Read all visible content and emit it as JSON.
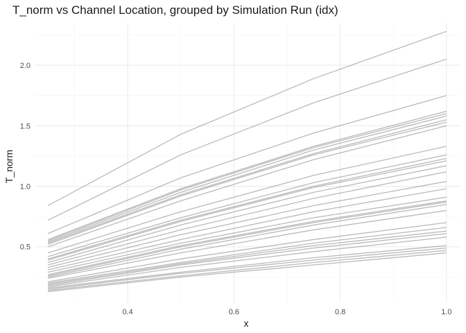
{
  "chart_data": {
    "type": "line",
    "title": "T_norm vs Channel Location, grouped by Simulation Run (idx)",
    "xlabel": "x",
    "ylabel": "T_norm",
    "xlim": [
      0.225,
      1.025
    ],
    "ylim": [
      0.04,
      2.35
    ],
    "x_ticks": [
      0.4,
      0.6,
      0.8,
      1.0
    ],
    "x_tick_labels": [
      "0.4",
      "0.6",
      "0.8",
      "1.0"
    ],
    "y_ticks": [
      0.5,
      1.0,
      1.5,
      2.0
    ],
    "y_tick_labels": [
      "0.5",
      "1.0",
      "1.5",
      "2.0"
    ],
    "grid": true,
    "legend": "none",
    "line_color": "#7f7f7f",
    "x": [
      0.25,
      0.5,
      0.75,
      1.0
    ],
    "series": [
      {
        "values": [
          0.84,
          1.43,
          1.89,
          2.28
        ]
      },
      {
        "values": [
          0.72,
          1.26,
          1.69,
          2.05
        ]
      },
      {
        "values": [
          0.61,
          1.07,
          1.44,
          1.75
        ]
      },
      {
        "values": [
          0.56,
          0.98,
          1.33,
          1.62
        ]
      },
      {
        "values": [
          0.55,
          0.97,
          1.32,
          1.6
        ]
      },
      {
        "values": [
          0.54,
          0.95,
          1.3,
          1.58
        ]
      },
      {
        "values": [
          0.53,
          0.93,
          1.27,
          1.55
        ]
      },
      {
        "values": [
          0.52,
          0.92,
          1.26,
          1.53
        ]
      },
      {
        "values": [
          0.5,
          0.88,
          1.22,
          1.5
        ]
      },
      {
        "values": [
          0.45,
          0.79,
          1.09,
          1.33
        ]
      },
      {
        "values": [
          0.42,
          0.74,
          1.03,
          1.26
        ]
      },
      {
        "values": [
          0.4,
          0.72,
          1.0,
          1.23
        ]
      },
      {
        "values": [
          0.39,
          0.71,
          0.99,
          1.21
        ]
      },
      {
        "values": [
          0.37,
          0.68,
          0.95,
          1.17
        ]
      },
      {
        "values": [
          0.35,
          0.64,
          0.9,
          1.12
        ]
      },
      {
        "values": [
          0.33,
          0.6,
          0.84,
          1.04
        ]
      },
      {
        "values": [
          0.31,
          0.56,
          0.79,
          0.98
        ]
      },
      {
        "values": [
          0.29,
          0.53,
          0.74,
          0.91
        ]
      },
      {
        "values": [
          0.27,
          0.51,
          0.71,
          0.88
        ]
      },
      {
        "values": [
          0.26,
          0.5,
          0.7,
          0.87
        ]
      },
      {
        "values": [
          0.25,
          0.48,
          0.68,
          0.85
        ]
      },
      {
        "values": [
          0.24,
          0.45,
          0.64,
          0.8
        ]
      },
      {
        "values": [
          0.21,
          0.4,
          0.56,
          0.7
        ]
      },
      {
        "values": [
          0.2,
          0.37,
          0.53,
          0.66
        ]
      },
      {
        "values": [
          0.19,
          0.36,
          0.51,
          0.63
        ]
      },
      {
        "values": [
          0.18,
          0.35,
          0.49,
          0.61
        ]
      },
      {
        "values": [
          0.17,
          0.33,
          0.46,
          0.58
        ]
      },
      {
        "values": [
          0.16,
          0.29,
          0.41,
          0.51
        ]
      },
      {
        "values": [
          0.15,
          0.28,
          0.39,
          0.49
        ]
      },
      {
        "values": [
          0.14,
          0.26,
          0.37,
          0.47
        ]
      },
      {
        "values": [
          0.13,
          0.25,
          0.35,
          0.45
        ]
      }
    ]
  }
}
